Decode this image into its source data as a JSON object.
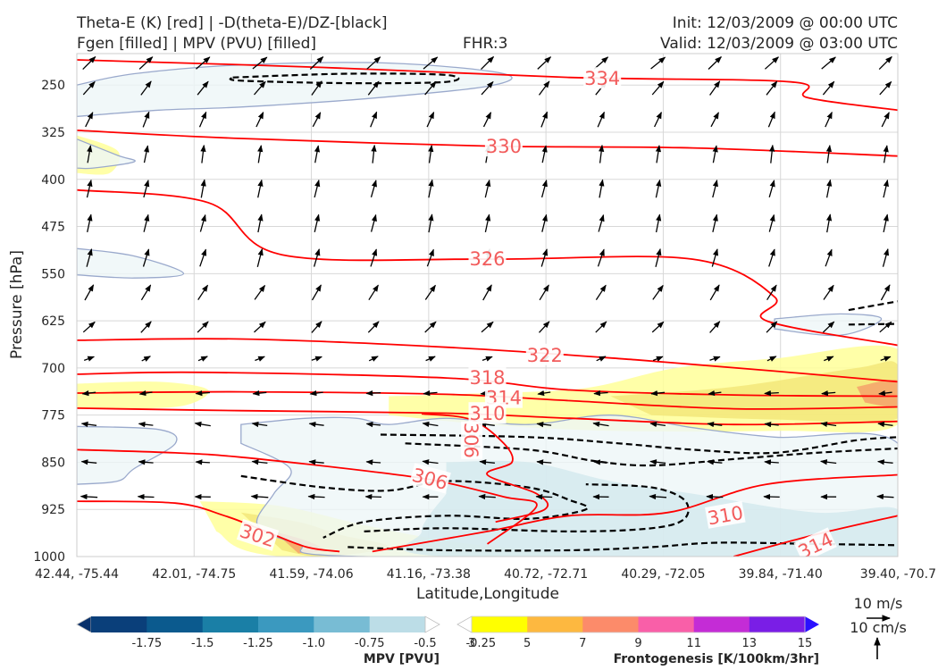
{
  "header": {
    "title_left_1": "Theta-E (K) [red] | -D(theta-E)/DZ-[black]",
    "title_left_2": "Fgen [filled] | MPV (PVU) [filled]",
    "fhr": "FHR:3",
    "init": "Init: 12/03/2009 @ 00:00 UTC",
    "valid": "Valid: 12/03/2009 @ 03:00 UTC"
  },
  "chart_data": {
    "type": "cross-section",
    "xlabel": "Latitude,Longitude",
    "ylabel": "Pressure [hPa]",
    "x_ticks": [
      "42.44, -75.44",
      "42.01, -74.75",
      "41.59, -74.06",
      "41.16, -73.38",
      "40.72, -72.71",
      "40.29, -72.05",
      "39.84, -71.40",
      "39.40, -70.7"
    ],
    "y_ticks": [
      250,
      325,
      400,
      475,
      550,
      625,
      700,
      775,
      850,
      925,
      1000
    ],
    "y_range": [
      200,
      1000
    ],
    "grid": true,
    "colors": {
      "theta_e": "#ff0000",
      "theta_e_label": "#f25c5c",
      "mpv_edge": "#9aa9cc",
      "mpv_fill": "#eef6f7",
      "mpv_fill_dark": "#d3e9ee",
      "dthetae": "#000000",
      "fgen_3": "#ffff99",
      "fgen_5": "#f3e87a",
      "fgen_7": "#f5a26b"
    },
    "theta_e_contours": [
      {
        "label": "334",
        "points": [
          [
            0,
            210
          ],
          [
            0.3,
            222
          ],
          [
            0.6,
            238
          ],
          [
            0.87,
            245
          ],
          [
            0.89,
            270
          ],
          [
            1.0,
            290
          ]
        ]
      },
      {
        "label": "330",
        "points": [
          [
            0,
            322
          ],
          [
            0.2,
            335
          ],
          [
            0.5,
            347
          ],
          [
            0.75,
            350
          ],
          [
            1.0,
            363
          ]
        ]
      },
      {
        "label": "326",
        "points": [
          [
            0,
            417
          ],
          [
            0.16,
            437
          ],
          [
            0.25,
            520
          ],
          [
            0.5,
            527
          ],
          [
            0.75,
            527
          ],
          [
            0.85,
            587
          ],
          [
            0.84,
            625
          ],
          [
            1.0,
            664
          ]
        ]
      },
      {
        "label": "322",
        "points": [
          [
            0,
            656
          ],
          [
            0.2,
            654
          ],
          [
            0.45,
            667
          ],
          [
            0.68,
            687
          ],
          [
            0.85,
            705
          ],
          [
            1.0,
            722
          ]
        ]
      },
      {
        "label": "318",
        "points": [
          [
            0,
            710
          ],
          [
            0.15,
            707
          ],
          [
            0.45,
            716
          ],
          [
            0.6,
            735
          ],
          [
            0.8,
            743
          ],
          [
            1.0,
            745
          ]
        ]
      },
      {
        "label": "314",
        "points": [
          [
            0,
            740
          ],
          [
            0.2,
            738
          ],
          [
            0.45,
            742
          ],
          [
            0.6,
            752
          ],
          [
            0.8,
            765
          ],
          [
            1.0,
            762
          ]
        ]
      },
      {
        "label": "310",
        "points": [
          [
            0,
            764
          ],
          [
            0.2,
            768
          ],
          [
            0.45,
            772
          ],
          [
            0.6,
            780
          ],
          [
            0.8,
            790
          ],
          [
            1.0,
            785
          ]
        ]
      },
      {
        "label": "306",
        "points": [
          [
            0.42,
            773
          ],
          [
            0.48,
            782
          ],
          [
            0.52,
            820
          ],
          [
            0.53,
            850
          ],
          [
            0.5,
            870
          ],
          [
            0.56,
            900
          ],
          [
            0.57,
            925
          ],
          [
            0.51,
            945
          ]
        ]
      },
      {
        "label": "306",
        "points": [
          [
            0,
            830
          ],
          [
            0.12,
            835
          ],
          [
            0.2,
            842
          ],
          [
            0.36,
            865
          ],
          [
            0.44,
            880
          ],
          [
            0.52,
            905
          ],
          [
            0.56,
            920
          ],
          [
            0.5,
            980
          ]
        ]
      },
      {
        "label": "302",
        "points": [
          [
            0,
            912
          ],
          [
            0.12,
            915
          ],
          [
            0.18,
            935
          ],
          [
            0.23,
            960
          ],
          [
            0.28,
            985
          ],
          [
            0.32,
            992
          ]
        ]
      },
      {
        "label": "310",
        "points": [
          [
            0.36,
            992
          ],
          [
            0.5,
            960
          ],
          [
            0.6,
            935
          ],
          [
            0.72,
            930
          ],
          [
            0.84,
            885
          ],
          [
            1.0,
            870
          ]
        ]
      },
      {
        "label": "314",
        "points": [
          [
            0.8,
            1000
          ],
          [
            0.9,
            965
          ],
          [
            1.0,
            935
          ]
        ]
      }
    ],
    "theta_e_labels": [
      {
        "text": "334",
        "x": 0.64,
        "y": 240
      },
      {
        "text": "330",
        "x": 0.52,
        "y": 348
      },
      {
        "text": "326",
        "x": 0.5,
        "y": 527
      },
      {
        "text": "322",
        "x": 0.57,
        "y": 680
      },
      {
        "text": "318",
        "x": 0.5,
        "y": 716
      },
      {
        "text": "314",
        "x": 0.52,
        "y": 748
      },
      {
        "text": "310",
        "x": 0.5,
        "y": 773
      },
      {
        "text": "306",
        "x": 0.48,
        "y": 815,
        "rotate": 90
      },
      {
        "text": "306",
        "x": 0.43,
        "y": 877,
        "rotate": 15
      },
      {
        "text": "302",
        "x": 0.22,
        "y": 967,
        "rotate": 18
      },
      {
        "text": "310",
        "x": 0.79,
        "y": 935,
        "rotate": -10
      },
      {
        "text": "314",
        "x": 0.9,
        "y": 983,
        "rotate": -25
      }
    ],
    "dthetae_contours": [
      [
        [
          0.19,
          238
        ],
        [
          0.33,
          232
        ],
        [
          0.45,
          234
        ],
        [
          0.45,
          245
        ],
        [
          0.33,
          247
        ],
        [
          0.2,
          243
        ],
        [
          0.19,
          238
        ]
      ],
      [
        [
          0.37,
          806
        ],
        [
          0.55,
          810
        ],
        [
          0.66,
          820
        ],
        [
          0.75,
          830
        ],
        [
          0.85,
          835
        ],
        [
          0.95,
          815
        ],
        [
          1.0,
          810
        ]
      ],
      [
        [
          0.4,
          820
        ],
        [
          0.55,
          830
        ],
        [
          0.63,
          848
        ],
        [
          0.7,
          855
        ],
        [
          0.8,
          845
        ],
        [
          0.9,
          835
        ],
        [
          1.0,
          828
        ]
      ],
      [
        [
          0.2,
          872
        ],
        [
          0.3,
          890
        ],
        [
          0.38,
          895
        ],
        [
          0.45,
          880
        ],
        [
          0.55,
          890
        ],
        [
          0.6,
          910
        ],
        [
          0.62,
          925
        ],
        [
          0.55,
          940
        ],
        [
          0.45,
          935
        ],
        [
          0.35,
          945
        ],
        [
          0.3,
          970
        ]
      ],
      [
        [
          0.35,
          960
        ],
        [
          0.45,
          955
        ],
        [
          0.6,
          960
        ],
        [
          0.7,
          955
        ],
        [
          0.74,
          940
        ],
        [
          0.74,
          910
        ],
        [
          0.7,
          890
        ],
        [
          0.62,
          885
        ]
      ],
      [
        [
          0.33,
          985
        ],
        [
          0.45,
          990
        ],
        [
          0.6,
          990
        ],
        [
          0.7,
          985
        ],
        [
          0.78,
          978
        ],
        [
          0.9,
          980
        ],
        [
          1.0,
          982
        ]
      ],
      [
        [
          0.94,
          608
        ],
        [
          1.0,
          594
        ]
      ],
      [
        [
          0.94,
          631
        ],
        [
          1.0,
          630
        ]
      ]
    ],
    "mpv_regions": [
      {
        "shade": "light",
        "points": [
          [
            0,
            250
          ],
          [
            0.07,
            232
          ],
          [
            0.2,
            218
          ],
          [
            0.38,
            215
          ],
          [
            0.52,
            232
          ],
          [
            0.5,
            252
          ],
          [
            0.35,
            272
          ],
          [
            0.2,
            285
          ],
          [
            0.1,
            290
          ],
          [
            0.0,
            300
          ]
        ]
      },
      {
        "shade": "light",
        "points": [
          [
            0,
            336
          ],
          [
            0.05,
            362
          ],
          [
            0.07,
            372
          ],
          [
            0.02,
            382
          ],
          [
            0,
            382
          ]
        ]
      },
      {
        "shade": "light",
        "points": [
          [
            0,
            510
          ],
          [
            0.07,
            522
          ],
          [
            0.13,
            550
          ],
          [
            0.07,
            557
          ],
          [
            0,
            552
          ]
        ]
      },
      {
        "shade": "light",
        "points": [
          [
            0.85,
            622
          ],
          [
            0.93,
            614
          ],
          [
            0.98,
            622
          ],
          [
            0.93,
            648
          ],
          [
            0.85,
            638
          ]
        ]
      },
      {
        "shade": "light",
        "points": [
          [
            0.0,
            793
          ],
          [
            0.1,
            798
          ],
          [
            0.12,
            820
          ],
          [
            0.07,
            860
          ],
          [
            0.05,
            880
          ],
          [
            0.0,
            885
          ]
        ]
      },
      {
        "shade": "light",
        "points": [
          [
            0.2,
            790
          ],
          [
            0.28,
            780
          ],
          [
            0.34,
            780
          ],
          [
            0.38,
            790
          ],
          [
            0.45,
            780
          ],
          [
            0.55,
            790
          ],
          [
            0.65,
            775
          ],
          [
            0.75,
            795
          ],
          [
            0.85,
            810
          ],
          [
            1.0,
            820
          ],
          [
            1.0,
            1000
          ],
          [
            0.35,
            1000
          ],
          [
            0.27,
            980
          ],
          [
            0.22,
            950
          ],
          [
            0.24,
            900
          ],
          [
            0.26,
            860
          ],
          [
            0.2,
            820
          ]
        ]
      },
      {
        "shade": "dark",
        "points": [
          [
            0.45,
            850
          ],
          [
            0.55,
            850
          ],
          [
            0.65,
            880
          ],
          [
            0.75,
            900
          ],
          [
            0.9,
            930
          ],
          [
            1.0,
            925
          ],
          [
            1.0,
            1000
          ],
          [
            0.45,
            1000
          ],
          [
            0.42,
            960
          ],
          [
            0.45,
            900
          ]
        ]
      }
    ],
    "fgen_regions": [
      {
        "level": 3,
        "points": [
          [
            0,
            330
          ],
          [
            0.05,
            355
          ],
          [
            0.04,
            390
          ],
          [
            0,
            390
          ]
        ]
      },
      {
        "level": 3,
        "points": [
          [
            0,
            725
          ],
          [
            0.1,
            722
          ],
          [
            0.16,
            735
          ],
          [
            0.13,
            760
          ],
          [
            0.05,
            765
          ],
          [
            0,
            765
          ]
        ]
      },
      {
        "level": 3,
        "points": [
          [
            0.38,
            745
          ],
          [
            0.5,
            740
          ],
          [
            0.62,
            732
          ],
          [
            0.73,
            700
          ],
          [
            0.85,
            685
          ],
          [
            1.0,
            670
          ],
          [
            1.0,
            790
          ],
          [
            0.85,
            800
          ],
          [
            0.65,
            800
          ],
          [
            0.5,
            790
          ],
          [
            0.38,
            775
          ]
        ]
      },
      {
        "level": 5,
        "points": [
          [
            0.65,
            745
          ],
          [
            0.8,
            730
          ],
          [
            0.95,
            700
          ],
          [
            1.0,
            695
          ],
          [
            1.0,
            780
          ],
          [
            0.85,
            782
          ],
          [
            0.7,
            775
          ]
        ]
      },
      {
        "level": 7,
        "points": [
          [
            0.95,
            730
          ],
          [
            1.0,
            720
          ],
          [
            1.0,
            760
          ],
          [
            0.96,
            755
          ]
        ]
      },
      {
        "level": 3,
        "points": [
          [
            0.15,
            912
          ],
          [
            0.25,
            920
          ],
          [
            0.35,
            950
          ],
          [
            0.45,
            975
          ],
          [
            0.55,
            990
          ],
          [
            0.6,
            1000
          ],
          [
            0.25,
            1000
          ],
          [
            0.17,
            960
          ]
        ]
      },
      {
        "level": 5,
        "points": [
          [
            0.2,
            930
          ],
          [
            0.27,
            945
          ],
          [
            0.32,
            965
          ],
          [
            0.38,
            985
          ],
          [
            0.3,
            1000
          ],
          [
            0.25,
            990
          ]
        ]
      },
      {
        "level": 7,
        "points": [
          [
            0.24,
            960
          ],
          [
            0.28,
            975
          ],
          [
            0.3,
            990
          ],
          [
            0.27,
            995
          ]
        ]
      }
    ],
    "wind_vectors": {
      "reference": "10 m/s / 10 cm/s",
      "rows": [
        {
          "p": 215,
          "u": 1.0,
          "w": 0.9
        },
        {
          "p": 255,
          "u": 0.8,
          "w": 1.0
        },
        {
          "p": 305,
          "u": 0.5,
          "w": 1.1
        },
        {
          "p": 360,
          "u": 0.2,
          "w": 1.3
        },
        {
          "p": 415,
          "u": 0.3,
          "w": 1.3
        },
        {
          "p": 470,
          "u": 0.3,
          "w": 1.3
        },
        {
          "p": 525,
          "u": 0.4,
          "w": 1.3
        },
        {
          "p": 580,
          "u": 0.7,
          "w": 1.1
        },
        {
          "p": 635,
          "u": 0.8,
          "w": 0.8
        },
        {
          "p": 685,
          "u": 0.7,
          "w": 0.3
        },
        {
          "p": 740,
          "u": -1.0,
          "w": -0.1
        },
        {
          "p": 790,
          "u": -1.1,
          "w": 0.15
        },
        {
          "p": 850,
          "u": -1.1,
          "w": 0.1
        },
        {
          "p": 905,
          "u": -1.2,
          "w": 0.05
        }
      ]
    },
    "colorbars": [
      {
        "name": "mpv",
        "label": "MPV [PVU]",
        "ticks": [
          "-1.75",
          "-1.5",
          "-1.25",
          "-1.0",
          "-0.75",
          "-0.5",
          "-0.25"
        ],
        "colors": [
          "#08306b",
          "#0a3f7a",
          "#0b5a8e",
          "#1a7fa6",
          "#3b99bf",
          "#78bcd4",
          "#bcdde7",
          "#ffffff"
        ]
      },
      {
        "name": "fgen",
        "label": "Frontogenesis [K/100km/3hr]",
        "ticks": [
          "3",
          "5",
          "7",
          "9",
          "11",
          "13",
          "15"
        ],
        "colors": [
          "#ffffff",
          "#ffff00",
          "#fdb840",
          "#fc8b6a",
          "#f95fa8",
          "#c42cd6",
          "#7a1ee6",
          "#2a10ff"
        ]
      }
    ],
    "quiver_key": {
      "horizontal": "10 m/s",
      "vertical": "10 cm/s"
    }
  }
}
